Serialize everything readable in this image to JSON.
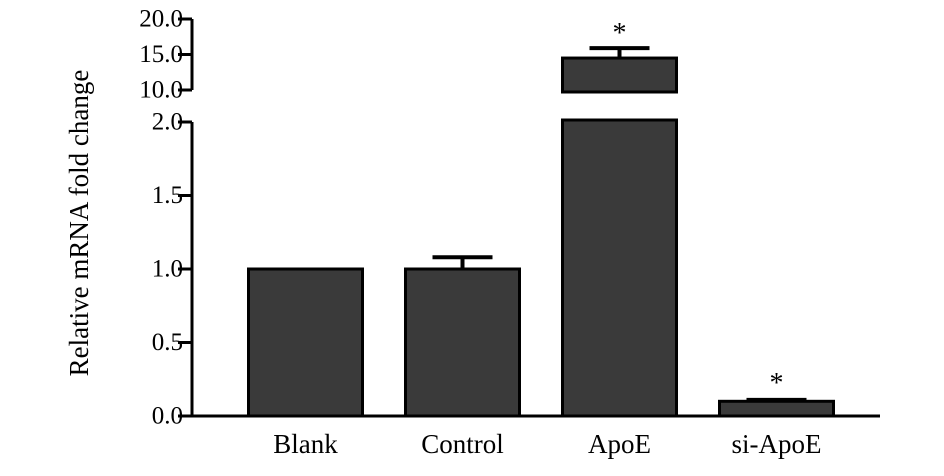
{
  "chart_data": {
    "type": "bar",
    "ylabel": "Relative mRNA fold change",
    "categories": [
      "Blank",
      "Control",
      "ApoE",
      "si-ApoE"
    ],
    "values": [
      1.0,
      1.0,
      14.5,
      0.1
    ],
    "errors": [
      0.0,
      0.08,
      1.4,
      0.01
    ],
    "significance": [
      "",
      "",
      "*",
      "*"
    ],
    "broken_axis": true,
    "lower_ylim": [
      0,
      2
    ],
    "upper_ylim": [
      10,
      20
    ],
    "lower_ticks": [
      "0.0",
      "0.5",
      "1.0",
      "1.5",
      "2.0"
    ],
    "upper_ticks": [
      "10.0",
      "15.0",
      "20.0"
    ],
    "colors": {
      "bar": "#3a3a3a",
      "stroke": "#000000"
    },
    "grid": false
  }
}
